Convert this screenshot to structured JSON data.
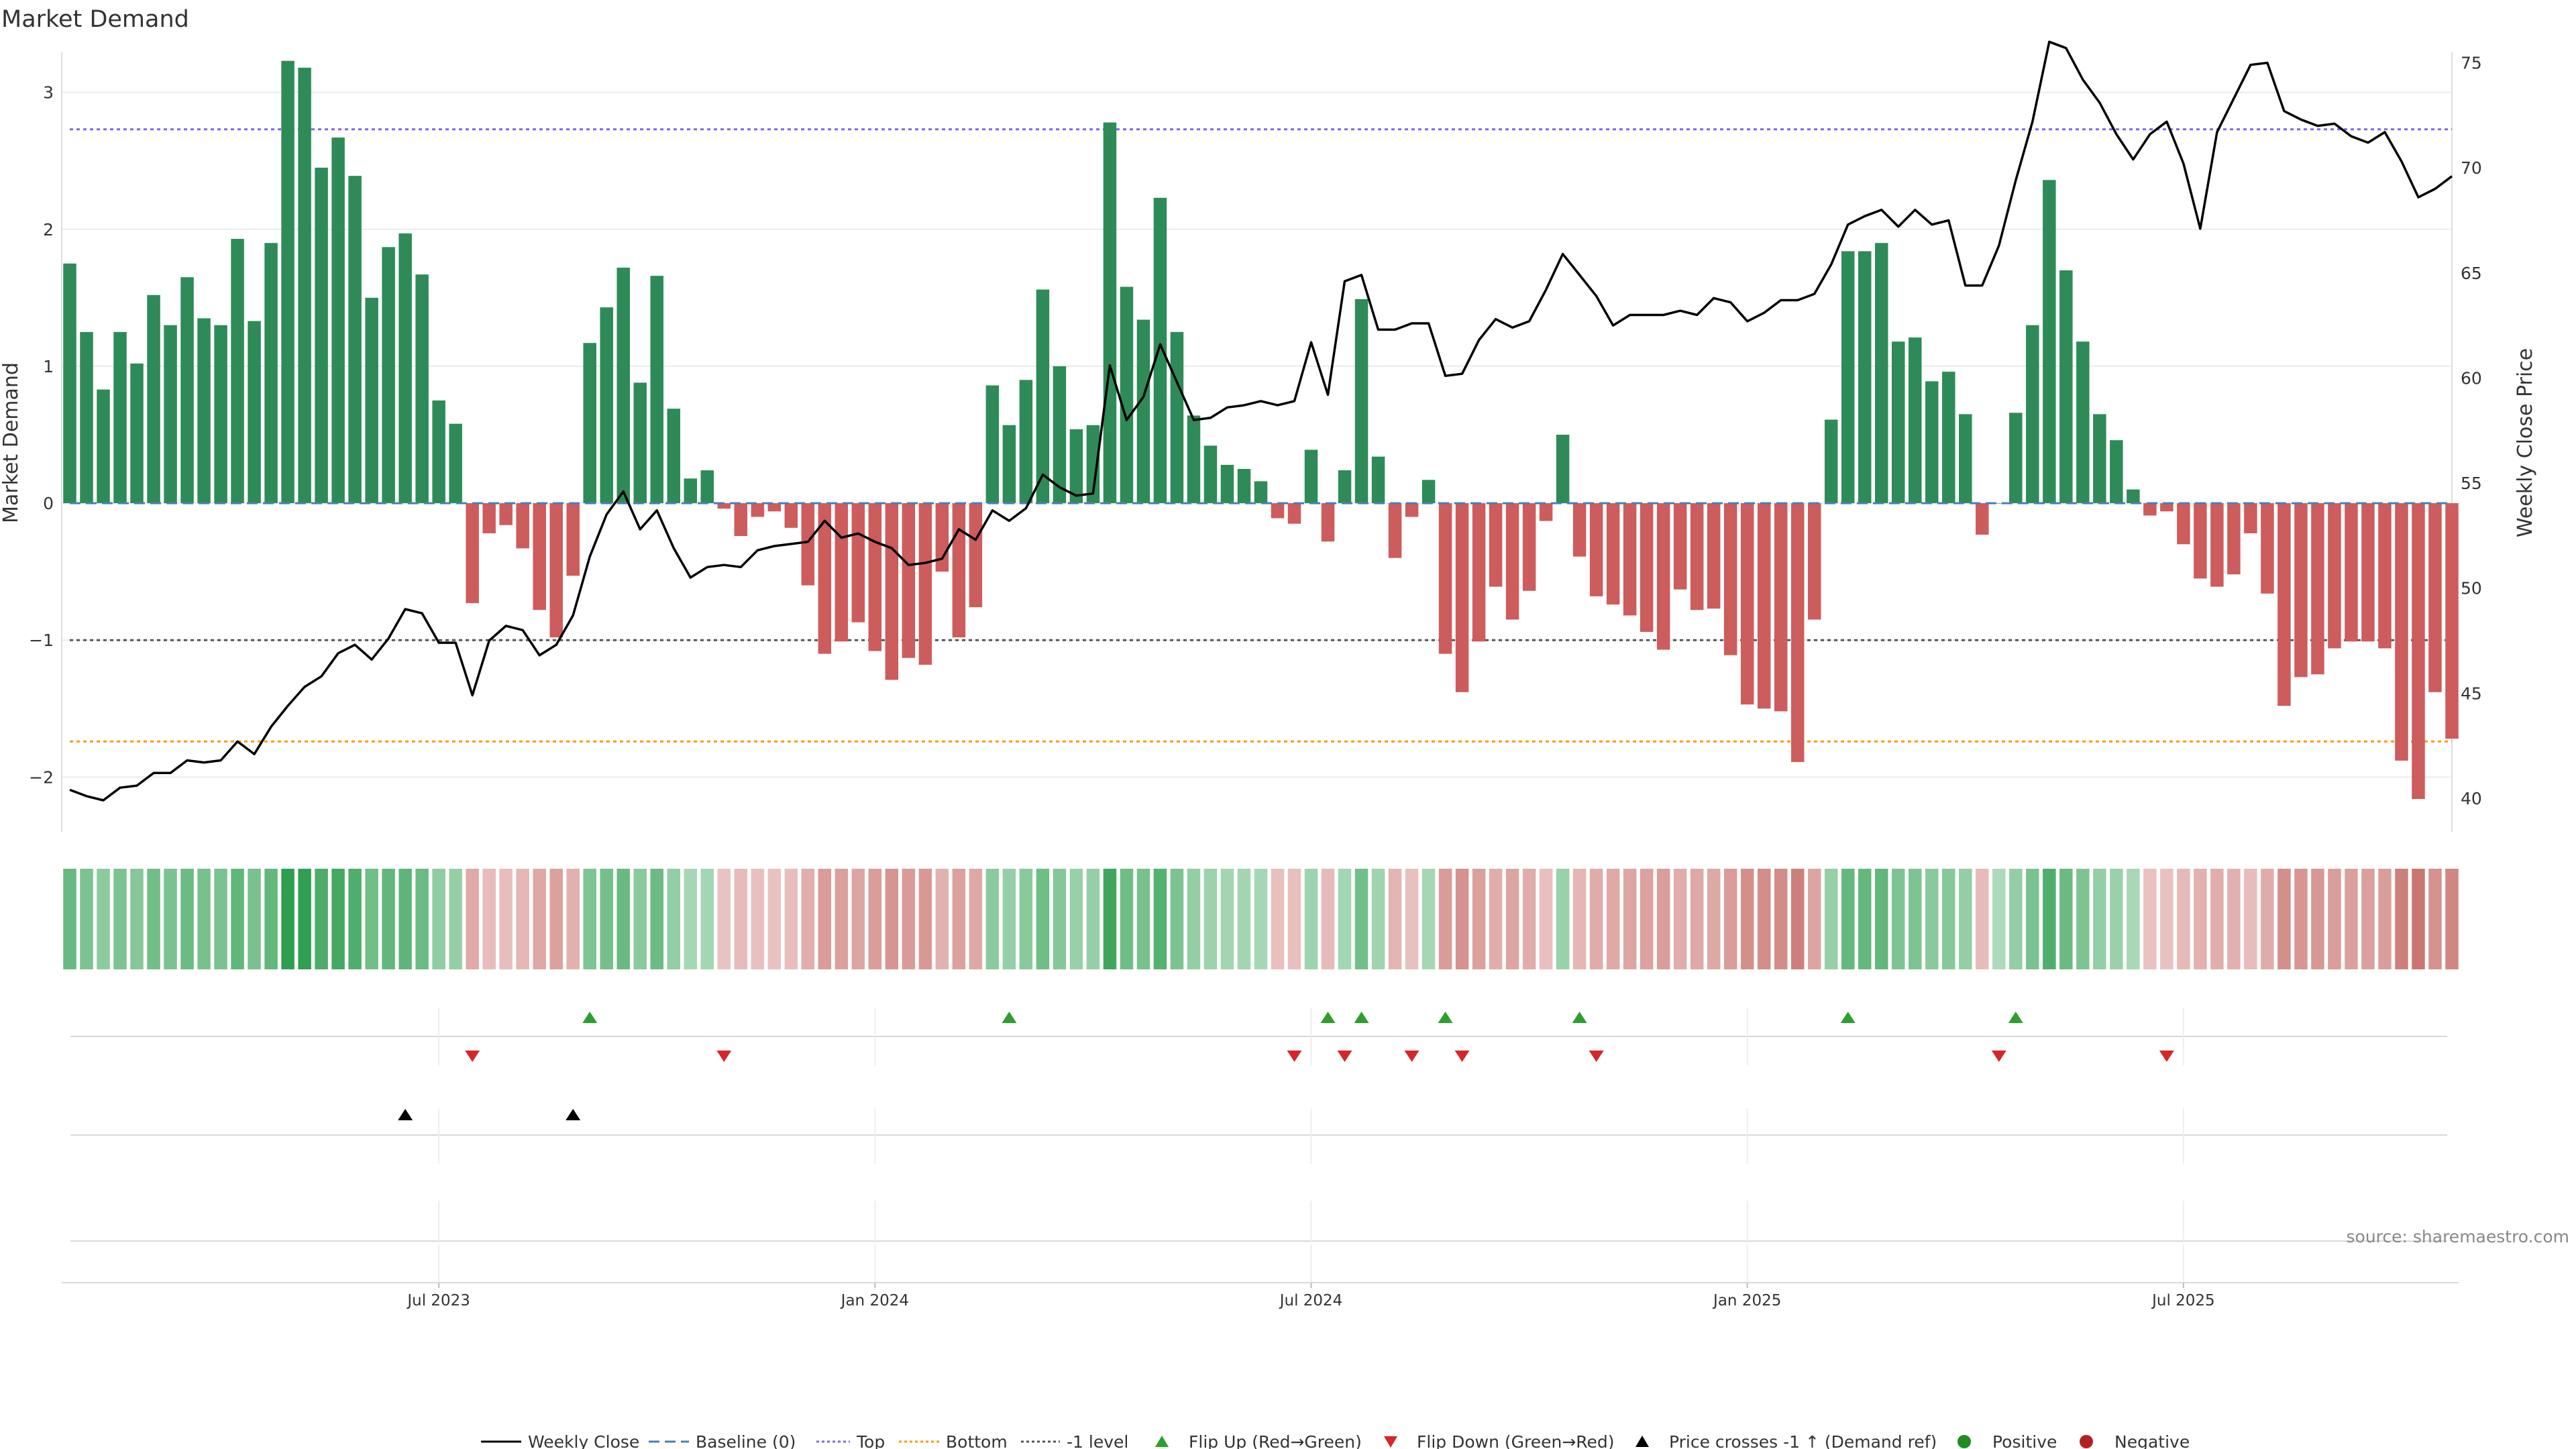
{
  "chart_data": {
    "type": "bar",
    "title": "Market Demand",
    "ylabel_left": "Market Demand",
    "ylabel_right": "Weekly Close Price",
    "source": "source: sharemaestro.com",
    "ylim_left": [
      -2.4,
      3.4
    ],
    "yticks_left": [
      -2,
      -1,
      0,
      1,
      2,
      3
    ],
    "yticks_left_labels": [
      "−2",
      "−1",
      "0",
      "1",
      "2",
      "3"
    ],
    "ylim_right": [
      38.4,
      76.2
    ],
    "yticks_right": [
      40,
      45,
      50,
      55,
      60,
      65,
      70,
      75
    ],
    "x_dates": [
      {
        "label": "Jul 2023",
        "week": 22
      },
      {
        "label": "Jan 2024",
        "week": 48
      },
      {
        "label": "Jul 2024",
        "week": 74
      },
      {
        "label": "Jan 2025",
        "week": 100
      },
      {
        "label": "Jul 2025",
        "week": 126
      }
    ],
    "reference_lines": {
      "top": 2.73,
      "bottom": -1.74,
      "minus_one": -1,
      "baseline": 0
    },
    "demand": [
      1.75,
      1.25,
      0.83,
      1.25,
      1.02,
      1.52,
      1.3,
      1.65,
      1.35,
      1.3,
      1.93,
      1.33,
      1.9,
      3.23,
      3.18,
      2.45,
      2.67,
      2.39,
      1.5,
      1.87,
      1.97,
      1.67,
      0.75,
      0.58,
      -0.73,
      -0.22,
      -0.16,
      -0.33,
      -0.78,
      -0.98,
      -0.53,
      1.17,
      1.43,
      1.72,
      0.88,
      1.66,
      0.69,
      0.18,
      0.24,
      -0.04,
      -0.24,
      -0.1,
      -0.06,
      -0.18,
      -0.6,
      -1.1,
      -1.01,
      -0.87,
      -1.08,
      -1.29,
      -1.13,
      -1.18,
      -0.5,
      -0.98,
      -0.76,
      0.86,
      0.57,
      0.9,
      1.56,
      1.0,
      0.54,
      0.57,
      2.78,
      1.58,
      1.34,
      2.23,
      1.25,
      0.64,
      0.42,
      0.28,
      0.25,
      0.16,
      -0.11,
      -0.15,
      0.39,
      -0.28,
      0.24,
      1.49,
      0.34,
      -0.4,
      -0.1,
      0.17,
      -1.1,
      -1.38,
      -1.01,
      -0.61,
      -0.85,
      -0.64,
      -0.13,
      0.5,
      -0.39,
      -0.68,
      -0.74,
      -0.82,
      -0.94,
      -1.07,
      -0.63,
      -0.78,
      -0.77,
      -1.11,
      -1.47,
      -1.5,
      -1.52,
      -1.89,
      -0.85,
      0.61,
      1.84,
      1.84,
      1.9,
      1.18,
      1.21,
      0.89,
      0.96,
      0.65,
      -0.23,
      0.0,
      0.66,
      1.3,
      2.36,
      1.7,
      1.18,
      0.65,
      0.46,
      0.1,
      -0.09,
      -0.06,
      -0.3,
      -0.55,
      -0.61,
      -0.52,
      -0.22,
      -0.66,
      -1.48,
      -1.27,
      -1.25,
      -1.06,
      -1.01,
      -1.01,
      -1.06,
      -1.88,
      -2.16,
      -1.38,
      -1.72
    ],
    "weekly_close": [
      40.4,
      40.1,
      39.9,
      40.5,
      40.6,
      41.2,
      41.2,
      41.8,
      41.7,
      41.8,
      42.7,
      42.1,
      43.4,
      44.4,
      45.3,
      45.8,
      46.9,
      47.3,
      46.6,
      47.6,
      49.0,
      48.8,
      47.4,
      47.4,
      44.9,
      47.5,
      48.2,
      48.0,
      46.8,
      47.3,
      48.7,
      51.5,
      53.5,
      54.6,
      52.8,
      53.7,
      51.9,
      50.5,
      51.0,
      51.1,
      51.0,
      51.8,
      52.0,
      52.1,
      52.2,
      53.2,
      52.4,
      52.6,
      52.2,
      51.9,
      51.1,
      51.2,
      51.4,
      52.8,
      52.3,
      53.7,
      53.2,
      53.8,
      55.4,
      54.8,
      54.4,
      54.5,
      60.6,
      58.0,
      59.1,
      61.6,
      59.8,
      58.0,
      58.1,
      58.6,
      58.7,
      58.9,
      58.7,
      58.9,
      61.7,
      59.2,
      64.6,
      64.9,
      62.3,
      62.3,
      62.6,
      62.6,
      60.1,
      60.2,
      61.8,
      62.8,
      62.4,
      62.7,
      64.2,
      65.9,
      64.9,
      63.9,
      62.5,
      63.0,
      63.0,
      63.0,
      63.2,
      63.0,
      63.8,
      63.6,
      62.7,
      63.1,
      63.7,
      63.7,
      64.0,
      65.4,
      67.3,
      67.7,
      68.0,
      67.2,
      68.0,
      67.3,
      67.5,
      64.4,
      64.4,
      66.3,
      69.4,
      72.2,
      76.0,
      75.7,
      74.2,
      73.1,
      71.6,
      70.4,
      71.6,
      72.2,
      70.2,
      67.1,
      71.7,
      73.3,
      74.9,
      75.0,
      72.7,
      72.3,
      72.0,
      72.1,
      71.5,
      71.2,
      71.7,
      70.3,
      68.6,
      69.0,
      69.6
    ]
  },
  "signals": {
    "flip_up_weeks": [
      31,
      56,
      75,
      77,
      82,
      90,
      106,
      116
    ],
    "flip_down_weeks": [
      24,
      39,
      73,
      76,
      80,
      83,
      91,
      115,
      125
    ],
    "price_cross_weeks": [
      20,
      30
    ]
  },
  "legend": {
    "weekly_close": "Weekly Close",
    "baseline": "Baseline (0)",
    "top": "Top",
    "bottom": "Bottom",
    "minus_one": "-1 level",
    "flip_up": "Flip Up (Red→Green)",
    "flip_down": "Flip Down (Green→Red)",
    "price_cross": "Price crosses -1 ↑ (Demand ref)",
    "positive": "Positive",
    "negative": "Negative"
  },
  "colors": {
    "positive_bar": "#2e8b57",
    "negative_bar": "#cd5c5c",
    "price_line": "#000000",
    "baseline": "#4a7fb5",
    "top_line": "#7b68ee",
    "bottom_line": "#ff9900",
    "minus_one_line": "#555555",
    "flip_up": "#2ca02c",
    "flip_down": "#d62728",
    "price_cross": "#000000",
    "positive_dot": "#228b22",
    "negative_dot": "#b22222",
    "grid": "#ebebeb"
  }
}
